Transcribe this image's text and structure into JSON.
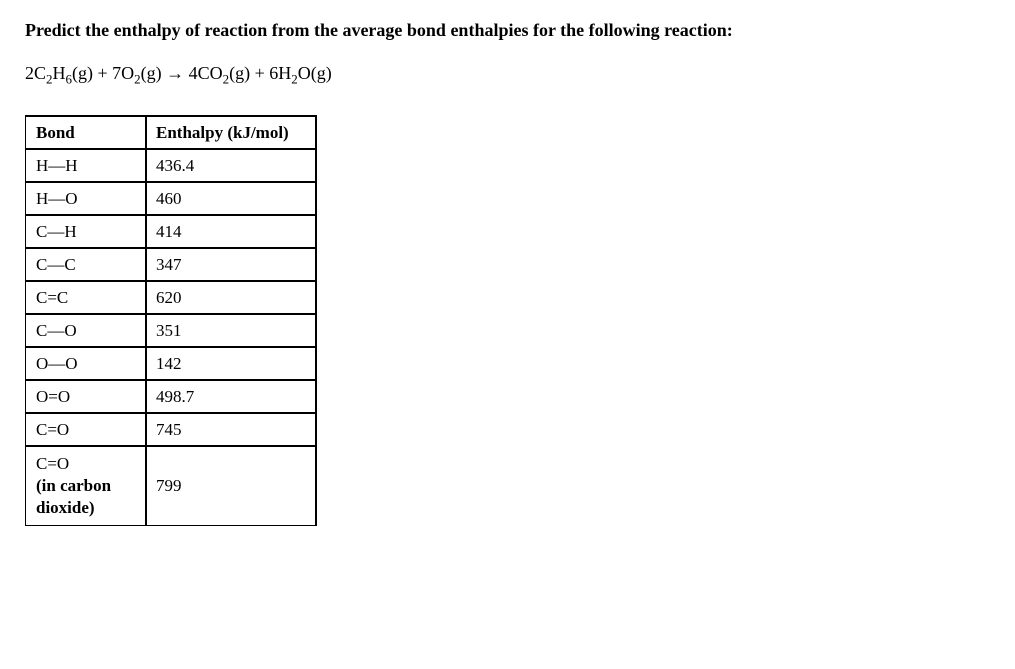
{
  "question": "Predict the enthalpy of reaction from the average bond enthalpies for the following reaction:",
  "equation": {
    "r1_coef": "2C",
    "r1_sub1": "2",
    "r1_mid": "H",
    "r1_sub2": "6",
    "r1_state": "(g) + 7O",
    "r1_sub3": "2",
    "r1_end": "(g) → 4CO",
    "p1_sub": "2",
    "p1_state": "(g) + 6H",
    "p2_sub": "2",
    "p2_end": "O(g)"
  },
  "table": {
    "header_bond": "Bond",
    "header_enthalpy": "Enthalpy (kJ/mol)",
    "rows": [
      {
        "bond": "H—H",
        "enthalpy": "436.4"
      },
      {
        "bond": "H—O",
        "enthalpy": "460"
      },
      {
        "bond": "C—H",
        "enthalpy": "414"
      },
      {
        "bond": "C—C",
        "enthalpy": "347"
      },
      {
        "bond": "C=C",
        "enthalpy": "620"
      },
      {
        "bond": "C—O",
        "enthalpy": "351"
      },
      {
        "bond": "O—O",
        "enthalpy": "142"
      },
      {
        "bond": "O=O",
        "enthalpy": "498.7"
      },
      {
        "bond": "C=O",
        "enthalpy": "745"
      }
    ],
    "last_row": {
      "bond_line1": "C=O",
      "bond_line2": "(in carbon",
      "bond_line3": "dioxide)",
      "enthalpy": "799"
    }
  }
}
